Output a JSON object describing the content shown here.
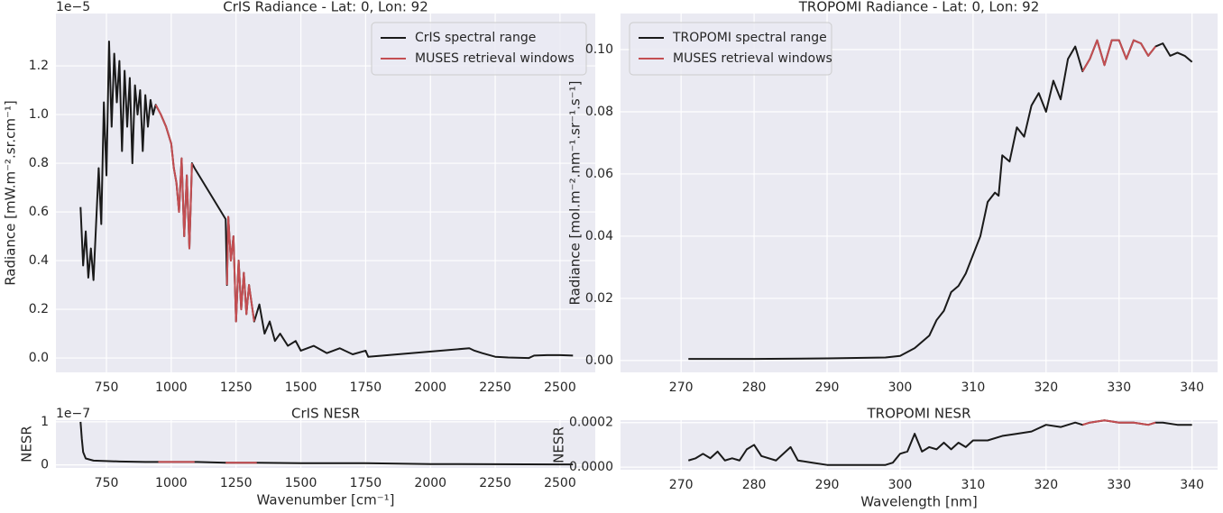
{
  "chart_data": [
    {
      "type": "line",
      "title": "CrIS Radiance - Lat: 0, Lon: 92",
      "ylabel": "Radiance [mW.m⁻².sr.cm⁻¹]",
      "y_offset_text": "1e−5",
      "x": [
        650,
        660,
        670,
        680,
        690,
        700,
        710,
        720,
        730,
        740,
        750,
        760,
        770,
        780,
        790,
        800,
        810,
        820,
        830,
        840,
        850,
        860,
        870,
        880,
        890,
        900,
        910,
        920,
        930,
        940,
        960,
        980,
        1000,
        1010,
        1020,
        1030,
        1040,
        1050,
        1060,
        1070,
        1080,
        1090,
        1210,
        1215,
        1220,
        1230,
        1240,
        1250,
        1260,
        1270,
        1280,
        1290,
        1300,
        1320,
        1340,
        1360,
        1380,
        1400,
        1420,
        1450,
        1480,
        1500,
        1550,
        1600,
        1650,
        1700,
        1750,
        1760,
        2150,
        2170,
        2200,
        2250,
        2300,
        2380,
        2400,
        2450,
        2500,
        2550
      ],
      "series": [
        {
          "name": "CrIS spectral range",
          "color": "#1a1a1a",
          "values": [
            0.62,
            0.38,
            0.52,
            0.33,
            0.45,
            0.32,
            0.55,
            0.78,
            0.55,
            1.05,
            0.75,
            1.3,
            0.95,
            1.25,
            1.05,
            1.22,
            0.85,
            1.18,
            0.95,
            1.15,
            0.8,
            1.12,
            1.0,
            1.1,
            0.85,
            1.08,
            0.95,
            1.06,
            1.0,
            1.04,
            1.0,
            0.95,
            0.88,
            0.78,
            0.72,
            0.6,
            0.82,
            0.5,
            0.75,
            0.45,
            0.8,
            0.78,
            0.57,
            0.3,
            0.58,
            0.4,
            0.5,
            0.15,
            0.4,
            0.2,
            0.35,
            0.18,
            0.3,
            0.15,
            0.22,
            0.1,
            0.15,
            0.07,
            0.1,
            0.05,
            0.07,
            0.03,
            0.05,
            0.02,
            0.04,
            0.015,
            0.03,
            0.005,
            0.04,
            0.03,
            0.02,
            0.005,
            0.002,
            0.0,
            0.01,
            0.012,
            0.012,
            0.01
          ]
        },
        {
          "name": "MUSES retrieval windows",
          "color": "#c44e52",
          "values": [
            null,
            null,
            null,
            null,
            null,
            null,
            null,
            null,
            null,
            null,
            null,
            null,
            null,
            null,
            null,
            null,
            null,
            null,
            null,
            null,
            null,
            null,
            null,
            null,
            null,
            null,
            null,
            null,
            null,
            1.04,
            1.0,
            0.95,
            0.88,
            0.78,
            0.72,
            0.6,
            0.82,
            0.5,
            0.75,
            0.45,
            0.8,
            null,
            null,
            0.3,
            0.58,
            0.4,
            0.5,
            0.15,
            0.4,
            0.2,
            0.35,
            0.18,
            0.3,
            0.15,
            null,
            null,
            null,
            null,
            null,
            null,
            null,
            null,
            null,
            null,
            null,
            null,
            null,
            null,
            null,
            null,
            null,
            null,
            null,
            null,
            null,
            null,
            null,
            null
          ]
        }
      ],
      "xlim": [
        555,
        2636
      ],
      "ylim": [
        -0.059,
        1.415
      ],
      "xticks": [
        750,
        1000,
        1250,
        1500,
        1750,
        2000,
        2250,
        2500
      ],
      "yticks": [
        {
          "value": 0,
          "label": "0.0"
        },
        0.2,
        0.4,
        0.6,
        0.8,
        {
          "value": 1,
          "label": "1.0"
        },
        1.2
      ],
      "grid": true,
      "legend": "upper right"
    },
    {
      "type": "line",
      "title": "TROPOMI Radiance - Lat: 0, Lon: 92",
      "ylabel": "Radiance [mol.m⁻².nm⁻¹.sr⁻¹.s⁻¹]",
      "x": [
        271,
        280,
        290,
        298,
        300,
        302,
        304,
        305,
        306,
        307,
        308,
        309,
        310,
        311,
        312,
        313,
        313.5,
        314,
        315,
        316,
        317,
        318,
        319,
        320,
        321,
        322,
        323,
        324,
        325,
        326,
        327,
        328,
        329,
        330,
        331,
        332,
        333,
        334,
        335,
        336,
        337,
        338,
        339,
        340
      ],
      "series": [
        {
          "name": "TROPOMI spectral range",
          "color": "#1a1a1a",
          "values": [
            0.0005,
            0.0005,
            0.0007,
            0.001,
            0.0015,
            0.004,
            0.008,
            0.013,
            0.016,
            0.022,
            0.024,
            0.028,
            0.034,
            0.04,
            0.051,
            0.054,
            0.053,
            0.066,
            0.064,
            0.075,
            0.072,
            0.082,
            0.086,
            0.08,
            0.09,
            0.084,
            0.097,
            0.101,
            0.093,
            0.097,
            0.103,
            0.095,
            0.103,
            0.103,
            0.097,
            0.103,
            0.102,
            0.098,
            0.101,
            0.102,
            0.098,
            0.099,
            0.098,
            0.096
          ]
        },
        {
          "name": "MUSES retrieval windows",
          "color": "#c44e52",
          "values": [
            null,
            null,
            null,
            null,
            null,
            null,
            null,
            null,
            null,
            null,
            null,
            null,
            null,
            null,
            null,
            null,
            null,
            null,
            null,
            null,
            null,
            null,
            null,
            null,
            null,
            null,
            null,
            null,
            0.093,
            0.097,
            0.103,
            0.095,
            0.103,
            0.103,
            0.097,
            0.103,
            0.102,
            0.098,
            0.101,
            null,
            null,
            null,
            null,
            null
          ]
        }
      ],
      "xlim": [
        261.7,
        343.5
      ],
      "ylim": [
        -0.0038,
        0.1116
      ],
      "xticks": [
        270,
        280,
        290,
        300,
        310,
        320,
        330,
        340
      ],
      "yticks": [
        {
          "value": 0,
          "label": "0.00"
        },
        0.02,
        0.04,
        0.06,
        0.08,
        {
          "value": 0.1,
          "label": "0.10"
        }
      ],
      "grid": true,
      "legend": "upper left"
    },
    {
      "type": "line",
      "title": "CrIS NESR",
      "xlabel": "Wavenumber [cm⁻¹]",
      "ylabel": "NESR",
      "y_offset_text": "1e−7",
      "x": [
        650,
        655,
        660,
        670,
        700,
        800,
        900,
        950,
        1000,
        1050,
        1090,
        1100,
        1210,
        1250,
        1300,
        1330,
        1500,
        1750,
        2000,
        2500,
        2550
      ],
      "series": [
        {
          "color": "#1a1a1a",
          "values": [
            1.0,
            0.6,
            0.3,
            0.15,
            0.1,
            0.08,
            0.07,
            0.07,
            0.07,
            0.07,
            0.07,
            0.07,
            0.05,
            0.05,
            0.05,
            0.05,
            0.04,
            0.04,
            0.02,
            0.01,
            0.01
          ]
        },
        {
          "color": "#c44e52",
          "values": [
            null,
            null,
            null,
            null,
            null,
            null,
            null,
            0.07,
            0.07,
            0.07,
            0.07,
            null,
            0.05,
            0.05,
            0.05,
            0.05,
            null,
            null,
            null,
            null,
            null
          ]
        }
      ],
      "xlim": [
        555,
        2636
      ],
      "ylim": [
        -0.07,
        1.04
      ],
      "xticks": [
        750,
        1000,
        1250,
        1500,
        1750,
        2000,
        2250,
        2500
      ],
      "yticks": [
        0,
        1
      ],
      "grid": true
    },
    {
      "type": "line",
      "title": "TROPOMI NESR",
      "xlabel": "Wavelength [nm]",
      "ylabel": "NESR",
      "x": [
        271,
        272,
        273,
        274,
        275,
        276,
        277,
        278,
        279,
        280,
        281,
        283,
        285,
        286,
        288,
        290,
        295,
        298,
        299,
        300,
        301,
        302,
        303,
        304,
        305,
        306,
        307,
        308,
        309,
        310,
        312,
        314,
        316,
        318,
        320,
        322,
        324,
        325,
        326,
        328,
        330,
        332,
        334,
        335,
        336,
        338,
        340
      ],
      "series": [
        {
          "color": "#1a1a1a",
          "values": [
            3e-05,
            4e-05,
            6e-05,
            4e-05,
            7e-05,
            3e-05,
            4e-05,
            3e-05,
            8e-05,
            0.0001,
            5e-05,
            3e-05,
            9e-05,
            3e-05,
            2e-05,
            1e-05,
            1e-05,
            1e-05,
            2e-05,
            6e-05,
            7e-05,
            0.00015,
            7e-05,
            9e-05,
            8e-05,
            0.00011,
            8e-05,
            0.00011,
            9e-05,
            0.00012,
            0.00012,
            0.00014,
            0.00015,
            0.00016,
            0.00019,
            0.00018,
            0.0002,
            0.00019,
            0.0002,
            0.00021,
            0.0002,
            0.0002,
            0.00019,
            0.0002,
            0.0002,
            0.00019,
            0.00019
          ]
        },
        {
          "color": "#c44e52",
          "values": [
            null,
            null,
            null,
            null,
            null,
            null,
            null,
            null,
            null,
            null,
            null,
            null,
            null,
            null,
            null,
            null,
            null,
            null,
            null,
            null,
            null,
            null,
            null,
            null,
            null,
            null,
            null,
            null,
            null,
            null,
            null,
            null,
            null,
            null,
            null,
            null,
            null,
            0.00019,
            0.0002,
            0.00021,
            0.0002,
            0.0002,
            0.00019,
            0.0002,
            null,
            null,
            null
          ]
        }
      ],
      "xlim": [
        261.7,
        343.5
      ],
      "ylim": [
        -1.15e-05,
        0.000211
      ],
      "xticks": [
        270,
        280,
        290,
        300,
        310,
        320,
        330,
        340
      ],
      "yticks": [
        {
          "value": 0,
          "label": "0.0000"
        },
        {
          "value": 0.0002,
          "label": "0.0002"
        }
      ],
      "grid": true
    }
  ]
}
